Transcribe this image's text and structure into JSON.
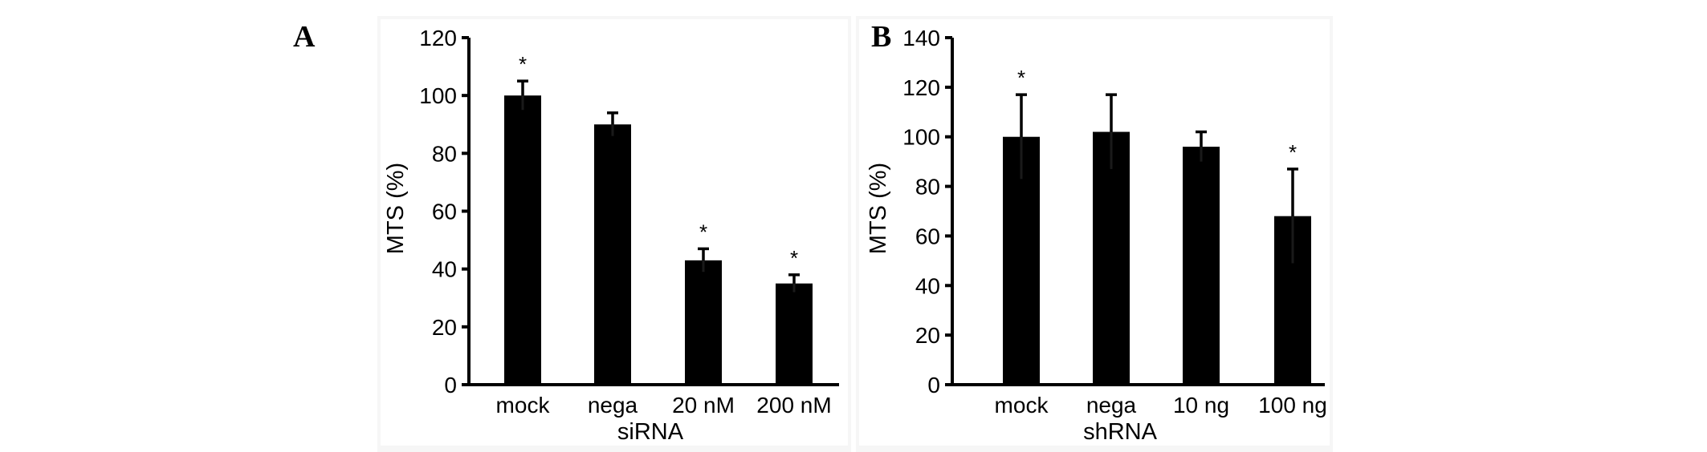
{
  "chart_data": [
    {
      "panel_label": "A",
      "type": "bar",
      "categories": [
        "mock",
        "nega",
        "20 nM",
        "200 nM"
      ],
      "values": [
        100,
        90,
        43,
        35
      ],
      "errors": [
        5,
        4,
        4,
        3
      ],
      "significance": [
        "*",
        "",
        "*",
        "*"
      ],
      "xlabel": "siRNA",
      "ylabel": "MTS (%)",
      "ylim": [
        0,
        120
      ],
      "yticks": [
        0,
        20,
        40,
        60,
        80,
        100,
        120
      ],
      "bar_color": "#000000",
      "grid": false
    },
    {
      "panel_label": "B",
      "type": "bar",
      "categories": [
        "mock",
        "nega",
        "10 ng",
        "100 ng"
      ],
      "values": [
        100,
        102,
        96,
        68
      ],
      "errors": [
        17,
        15,
        6,
        19
      ],
      "significance": [
        "*",
        "",
        "",
        "*"
      ],
      "xlabel": "shRNA",
      "ylabel": "MTS (%)",
      "ylim": [
        0,
        140
      ],
      "yticks": [
        0,
        20,
        40,
        60,
        80,
        100,
        120,
        140
      ],
      "bar_color": "#000000",
      "grid": false
    }
  ]
}
